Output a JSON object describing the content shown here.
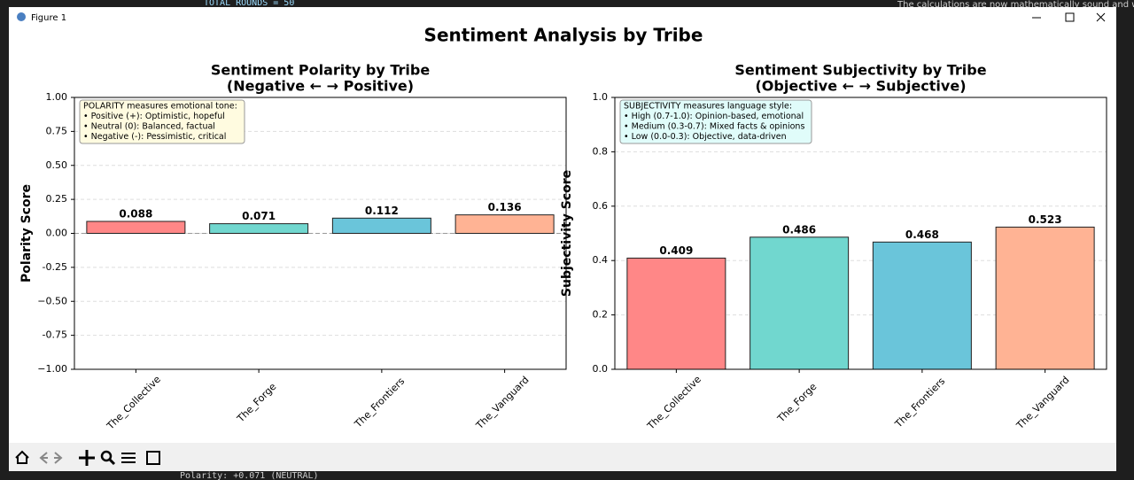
{
  "window": {
    "title": "Figure 1"
  },
  "background": {
    "code_line": "TOTAL_ROUNDS = 50",
    "chat_line": "The calculations are now mathematically sound and will give",
    "console_line": "Polarity:     +0.071 (NEUTRAL)"
  },
  "figure_title": "Sentiment Analysis by Tribe",
  "chart_data": [
    {
      "type": "bar",
      "title": [
        "Sentiment Polarity by Tribe",
        "(Negative ← → Positive)"
      ],
      "y_label": "Polarity Score",
      "categories": [
        "The_Collective",
        "The_Forge",
        "The_Frontiers",
        "The_Vanguard"
      ],
      "values": [
        0.088,
        0.071,
        0.112,
        0.136
      ],
      "colors": [
        "#ff8787",
        "#71d7cf",
        "#6ac5da",
        "#ffb394"
      ],
      "ylim": [
        -1,
        1
      ],
      "yticks": [
        {
          "value": -1,
          "label": "−1.00"
        },
        -0.75,
        {
          "value": -0.5,
          "label": "−0.50"
        },
        -0.25,
        {
          "value": 0,
          "label": "0.00"
        },
        0.25,
        {
          "value": 0.5,
          "label": "0.50"
        },
        0.75,
        {
          "value": 1,
          "label": "1.00"
        }
      ],
      "grid": true,
      "zero_line": true,
      "annotation": [
        "POLARITY measures emotional tone:",
        "• Positive (+): Optimistic, hopeful",
        "• Neutral (0): Balanced, factual",
        "• Negative (-): Pessimistic, critical"
      ],
      "annotation_color": "#fffbe0"
    },
    {
      "type": "bar",
      "title": [
        "Sentiment Subjectivity by Tribe",
        "(Objective ← → Subjective)"
      ],
      "y_label": "Subjectivity Score",
      "categories": [
        "The_Collective",
        "The_Forge",
        "The_Frontiers",
        "The_Vanguard"
      ],
      "values": [
        0.409,
        0.486,
        0.468,
        0.523
      ],
      "colors": [
        "#ff8787",
        "#71d7cf",
        "#6ac5da",
        "#ffb394"
      ],
      "ylim": [
        0,
        1
      ],
      "yticks": [
        {
          "value": 0,
          "label": "0.0"
        },
        0.2,
        0.4,
        0.6,
        0.8,
        {
          "value": 1,
          "label": "1.0"
        }
      ],
      "grid": true,
      "zero_line": false,
      "annotation": [
        "SUBJECTIVITY measures language style:",
        "• High (0.7-1.0): Opinion-based, emotional",
        "• Medium (0.3-0.7): Mixed facts & opinions",
        "• Low (0.0-0.3): Objective, data-driven"
      ],
      "annotation_color": "#e0fcfa"
    }
  ]
}
